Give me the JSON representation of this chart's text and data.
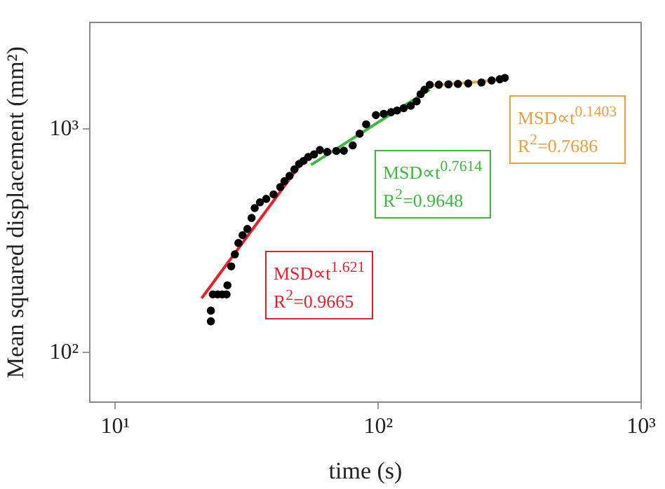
{
  "chart_data": {
    "type": "scatter",
    "xlabel": "time (s)",
    "ylabel": "Mean squared displacement (mm²)",
    "log": "xy",
    "grid": false,
    "legend": false,
    "xlim": [
      8,
      1000
    ],
    "xticks": [
      {
        "value": 10,
        "label": "10¹"
      },
      {
        "value": 100,
        "label": "10²"
      },
      {
        "value": 1000,
        "label": "10³"
      }
    ],
    "ylim": [
      60,
      3000
    ],
    "yticks": [
      {
        "value": 100,
        "label": "10²"
      },
      {
        "value": 1000,
        "label": "10³"
      }
    ],
    "series": [
      {
        "marker": "circle",
        "color": "#000000",
        "x": [
          23.1,
          23.1,
          23.5,
          24.5,
          25.5,
          26.5,
          26.7,
          27.6,
          28.5,
          29.4,
          30.5,
          31.8,
          33,
          33.9,
          35.5,
          37.5,
          40,
          42.4,
          44,
          46,
          48,
          50,
          52,
          54.2,
          57,
          60,
          64,
          69.3,
          74,
          80,
          85,
          90,
          98,
          105,
          112,
          118,
          125,
          133,
          140,
          145,
          150,
          157,
          170,
          185,
          201,
          220,
          247,
          270,
          290,
          303
        ],
        "values": [
          138,
          154,
          182,
          182,
          182,
          182,
          200,
          243,
          275,
          309,
          335,
          357,
          400,
          443,
          470,
          487,
          510,
          550,
          585,
          617,
          660,
          698,
          720,
          750,
          770,
          806,
          790,
          798,
          800,
          845,
          953,
          1050,
          1155,
          1170,
          1190,
          1211,
          1240,
          1271,
          1330,
          1432,
          1500,
          1578,
          1580,
          1585,
          1592,
          1600,
          1615,
          1650,
          1670,
          1694
        ]
      },
      {
        "type": "line",
        "marker": "none",
        "color": "#e8202a",
        "x": [
          21.3,
          53.1
        ],
        "values": [
          175,
          750
        ]
      },
      {
        "type": "line",
        "marker": "none",
        "color": "#3cb83c",
        "x": [
          55.5,
          157
        ],
        "values": [
          691,
          1503
        ]
      },
      {
        "type": "line",
        "marker": "none",
        "color": "#e8a040",
        "x": [
          157,
          201,
          247,
          303
        ],
        "values": [
          1560,
          1600,
          1630,
          1690
        ]
      }
    ],
    "annotations": [
      "MSD∝t$^{1.621}$\nR$^{2}$=0.9665",
      "MSD∝t$^{0.7614}$\nR$^{2}$=0.9648",
      "MSD∝t$^{0.1403}$\nR$^{2}$=0.7686"
    ]
  }
}
